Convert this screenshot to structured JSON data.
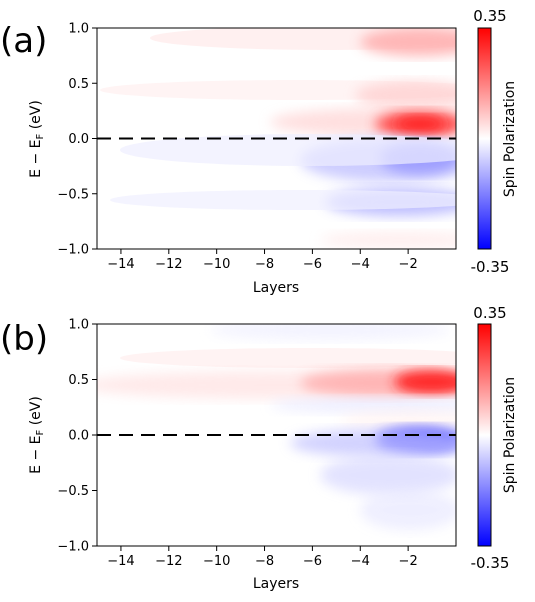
{
  "chart_data": [
    {
      "type": "heatmap",
      "panel_label": "(a)",
      "xlabel": "Layers",
      "ylabel": "E − E_F (eV)",
      "xlim": [
        -15,
        0
      ],
      "ylim": [
        -1.0,
        1.0
      ],
      "x_ticks": [
        -14,
        -12,
        -10,
        -8,
        -6,
        -4,
        -2
      ],
      "y_ticks": [
        -1.0,
        -0.5,
        0.0,
        0.5,
        1.0
      ],
      "y_tick_labels": [
        "−1.0",
        "−0.5",
        "0.0",
        "0.5",
        "1.0"
      ],
      "fermi_line_y": 0.0,
      "colorbar": {
        "label": "Spin Polarization",
        "max": 0.35,
        "min": -0.35,
        "max_label": "0.35",
        "min_label": "-0.35",
        "colors": [
          "#0000ff",
          "#ffffff",
          "#ff0000"
        ]
      },
      "features": [
        {
          "x_center": -1.5,
          "y_center": 0.1,
          "peak": 0.33
        },
        {
          "x_center": -2.0,
          "y_center": 0.9,
          "peak": 0.18
        },
        {
          "x_center": -2.0,
          "y_center": 0.45,
          "peak": 0.12
        },
        {
          "x_center": -1.5,
          "y_center": -0.15,
          "peak": -0.2
        },
        {
          "x_center": -1.5,
          "y_center": -0.55,
          "peak": -0.18
        },
        {
          "x_center": -2.0,
          "y_center": -0.9,
          "peak": 0.05
        }
      ]
    },
    {
      "type": "heatmap",
      "panel_label": "(b)",
      "xlabel": "Layers",
      "ylabel": "E − E_F (eV)",
      "xlim": [
        -15,
        0
      ],
      "ylim": [
        -1.0,
        1.0
      ],
      "x_ticks": [
        -14,
        -12,
        -10,
        -8,
        -6,
        -4,
        -2
      ],
      "y_ticks": [
        -1.0,
        -0.5,
        0.0,
        0.5,
        1.0
      ],
      "y_tick_labels": [
        "−1.0",
        "−0.5",
        "0.0",
        "0.5",
        "1.0"
      ],
      "fermi_line_y": 0.0,
      "colorbar": {
        "label": "Spin Polarization",
        "max": 0.35,
        "min": -0.35,
        "max_label": "0.35",
        "min_label": "-0.35",
        "colors": [
          "#0000ff",
          "#ffffff",
          "#ff0000"
        ]
      },
      "features": [
        {
          "x_center": -1.0,
          "y_center": 0.5,
          "peak": 0.34
        },
        {
          "x_center": -1.0,
          "y_center": 0.0,
          "peak": -0.28
        },
        {
          "x_center": -3.0,
          "y_center": 0.8,
          "peak": -0.08
        },
        {
          "x_center": -2.0,
          "y_center": -0.45,
          "peak": -0.1
        }
      ]
    }
  ]
}
